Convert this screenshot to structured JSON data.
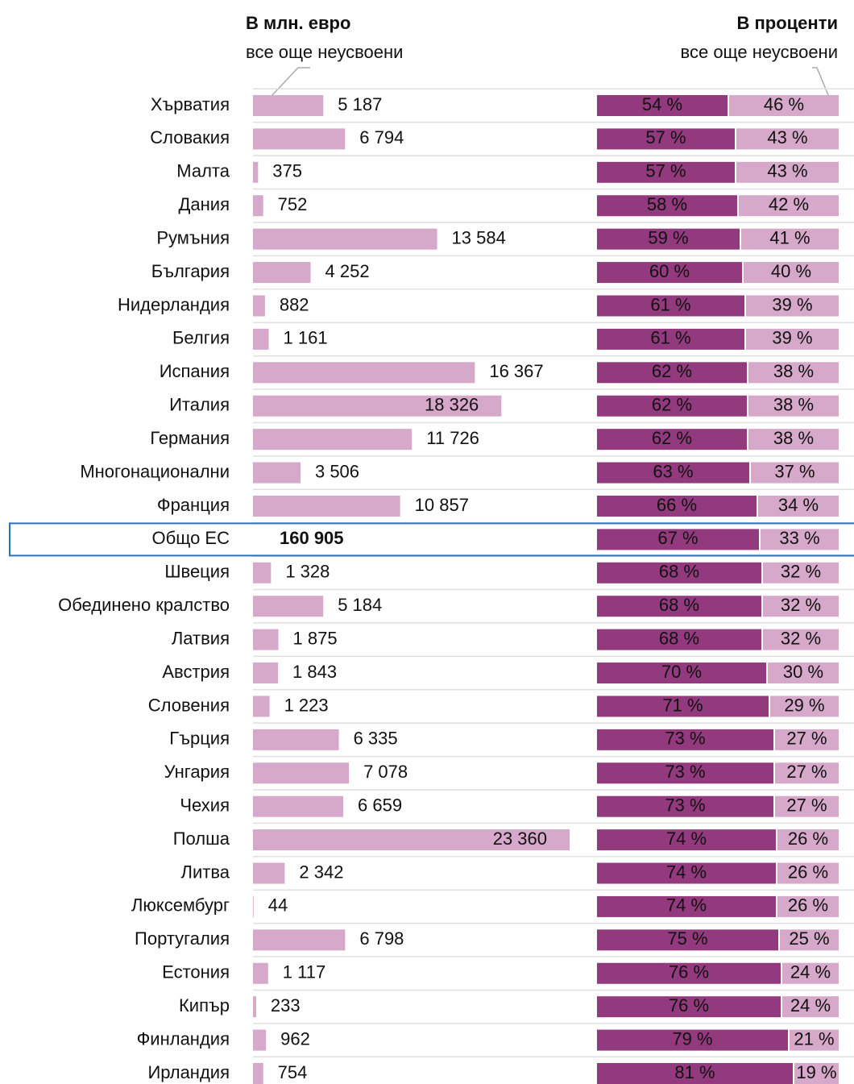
{
  "chart_data": [
    {
      "type": "hbar",
      "title": "В млн. евро",
      "subtitle": "все още неусвоени",
      "color": "#d6a8ca",
      "highlight": 13,
      "categories": [
        "Хърватия",
        "Словакия",
        "Малта",
        "Дания",
        "Румъния",
        "България",
        "Нидерландия",
        "Белгия",
        "Испания",
        "Италия",
        "Германия",
        "Многонационални",
        "Франция",
        "Общо ЕС",
        "Швеция",
        "Обединено кралство",
        "Латвия",
        "Австрия",
        "Словения",
        "Гърция",
        "Унгария",
        "Чехия",
        "Полша",
        "Литва",
        "Люксембург",
        "Португалия",
        "Естония",
        "Кипър",
        "Финландия",
        "Ирландия"
      ],
      "values": [
        5187,
        6794,
        375,
        752,
        13584,
        4252,
        882,
        1161,
        16367,
        18326,
        11726,
        3506,
        10857,
        160905,
        1328,
        5184,
        1875,
        1843,
        1223,
        6335,
        7078,
        6659,
        23360,
        2342,
        44,
        6798,
        1117,
        233,
        962,
        754
      ],
      "value_labels": [
        "5 187",
        "6 794",
        "375",
        "752",
        "13 584",
        "4 252",
        "882",
        "1 161",
        "16 367",
        "18 326",
        "11 726",
        "3 506",
        "10 857",
        "160 905",
        "1 328",
        "5 184",
        "1 875",
        "1 843",
        "1 223",
        "6 335",
        "7 078",
        "6 659",
        "23 360",
        "2 342",
        "44",
        "6 798",
        "1 117",
        "233",
        "962",
        "754"
      ]
    },
    {
      "type": "stacked_hbar",
      "title": "В проценти",
      "series": [
        {
          "color": "#933a7e",
          "values": [
            54,
            57,
            57,
            58,
            59,
            60,
            61,
            61,
            62,
            62,
            62,
            63,
            66,
            67,
            68,
            68,
            68,
            70,
            71,
            73,
            73,
            73,
            74,
            74,
            74,
            75,
            76,
            76,
            79,
            81
          ],
          "value_labels": [
            "54 %",
            "57 %",
            "57 %",
            "58 %",
            "59 %",
            "60 %",
            "61 %",
            "61 %",
            "62 %",
            "62 %",
            "62 %",
            "63 %",
            "66 %",
            "67 %",
            "68 %",
            "68 %",
            "68 %",
            "70 %",
            "71 %",
            "73 %",
            "73 %",
            "73 %",
            "74 %",
            "74 %",
            "74 %",
            "75 %",
            "76 %",
            "76 %",
            "79 %",
            "81 %"
          ]
        },
        {
          "name": "все още неусвоени",
          "color": "#d6a8ca",
          "values": [
            46,
            43,
            43,
            42,
            41,
            40,
            39,
            39,
            38,
            38,
            38,
            37,
            34,
            33,
            32,
            32,
            32,
            30,
            29,
            27,
            27,
            27,
            26,
            26,
            26,
            25,
            24,
            24,
            21,
            19
          ],
          "value_labels": [
            "46 %",
            "43 %",
            "43 %",
            "42 %",
            "41 %",
            "40 %",
            "39 %",
            "39 %",
            "38 %",
            "38 %",
            "38 %",
            "37 %",
            "34 %",
            "33 %",
            "32 %",
            "32 %",
            "32 %",
            "30 %",
            "29 %",
            "27 %",
            "27 %",
            "27 %",
            "26 %",
            "26 %",
            "26 %",
            "25 %",
            "24 %",
            "24 %",
            "21 %",
            "19 %"
          ]
        }
      ]
    }
  ]
}
